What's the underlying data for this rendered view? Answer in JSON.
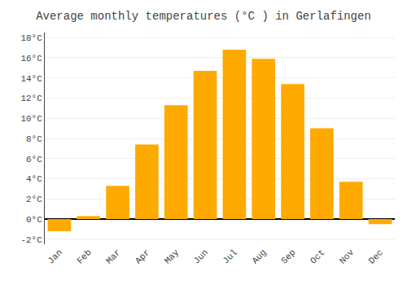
{
  "chart_data": {
    "type": "bar",
    "title": "Average monthly temperatures (°C ) in Gerlafingen",
    "categories": [
      "Jan",
      "Feb",
      "Mar",
      "Apr",
      "May",
      "Jun",
      "Jul",
      "Aug",
      "Sep",
      "Oct",
      "Nov",
      "Dec"
    ],
    "values": [
      -1.2,
      0.3,
      3.3,
      7.4,
      11.3,
      14.7,
      16.8,
      15.9,
      13.4,
      9.0,
      3.7,
      -0.5
    ],
    "color": "#FFAA00",
    "ylim": [
      -2.5,
      18.5
    ],
    "yticks": [
      {
        "value": -2,
        "label": "-2°C"
      },
      {
        "value": 0,
        "label": "0°C"
      },
      {
        "value": 2,
        "label": "2°C"
      },
      {
        "value": 4,
        "label": "4°C"
      },
      {
        "value": 6,
        "label": "6°C"
      },
      {
        "value": 8,
        "label": "8°C"
      },
      {
        "value": 10,
        "label": "10°C"
      },
      {
        "value": 12,
        "label": "12°C"
      },
      {
        "value": 14,
        "label": "14°C"
      },
      {
        "value": 16,
        "label": "16°C"
      },
      {
        "value": 18,
        "label": "18°C"
      }
    ],
    "grid": true
  }
}
